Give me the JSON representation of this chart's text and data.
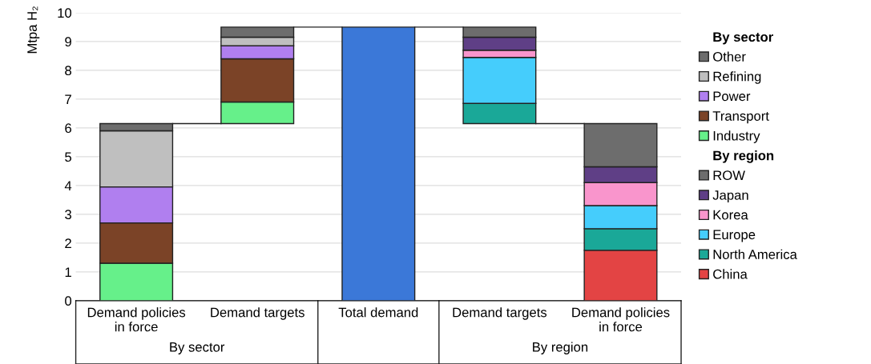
{
  "chart_data": {
    "type": "bar",
    "stacked": true,
    "ylabel": "Mtpa H₂",
    "categories": [
      "Demand policies in force",
      "Demand targets",
      "Total demand",
      "Demand targets",
      "Demand policies in force"
    ],
    "series": [
      {
        "name": "Industry",
        "color": "#66f08a",
        "values": [
          1.3,
          0.75,
          null,
          null,
          null
        ],
        "base": [
          0,
          6.15,
          null,
          null,
          null
        ]
      },
      {
        "name": "Transport",
        "color": "#7b4327",
        "values": [
          1.4,
          1.5,
          null,
          null,
          null
        ]
      },
      {
        "name": "Power",
        "color": "#b07fef",
        "values": [
          1.25,
          0.45,
          null,
          null,
          null
        ]
      },
      {
        "name": "Refining",
        "color": "#bfbfbf",
        "values": [
          1.95,
          0.3,
          null,
          null,
          null
        ]
      },
      {
        "name": "Other",
        "color": "#6d6d6d",
        "values": [
          0.25,
          0.35,
          null,
          null,
          null
        ]
      },
      {
        "color": "#3b78d8",
        "values": [
          null,
          null,
          9.5,
          null,
          null
        ]
      },
      {
        "name": "China",
        "color": "#e34444",
        "values": [
          null,
          null,
          null,
          null,
          1.75
        ]
      },
      {
        "name": "North America",
        "color": "#1aa898",
        "values": [
          null,
          null,
          null,
          0.7,
          0.75
        ],
        "base": [
          null,
          null,
          null,
          6.15,
          null
        ]
      },
      {
        "name": "Europe",
        "color": "#45cdfc",
        "values": [
          null,
          null,
          null,
          1.6,
          0.8
        ]
      },
      {
        "name": "Korea",
        "color": "#f995cc",
        "values": [
          null,
          null,
          null,
          0.25,
          0.8
        ]
      },
      {
        "name": "Japan",
        "color": "#5f3f86",
        "values": [
          null,
          null,
          null,
          0.45,
          0.55
        ]
      },
      {
        "name": "ROW",
        "color": "#6d6d6d",
        "values": [
          null,
          null,
          null,
          0.35,
          1.5
        ]
      }
    ],
    "ylim": [
      0,
      10
    ],
    "yticks": [
      0,
      1,
      2,
      3,
      4,
      5,
      6,
      7,
      8,
      9,
      10
    ],
    "grid": "y",
    "legend": "right",
    "annotations": [
      "By sector",
      "By region",
      "By sector",
      "By region"
    ]
  }
}
